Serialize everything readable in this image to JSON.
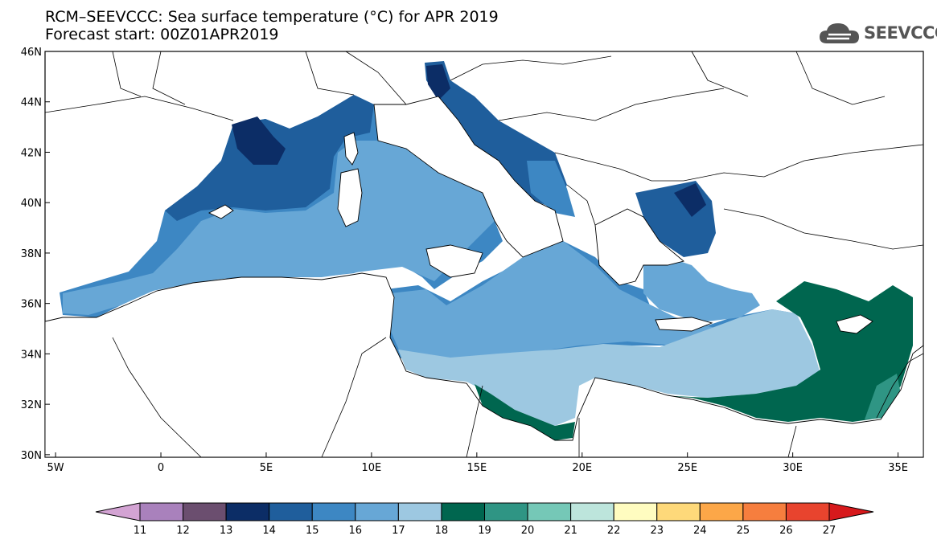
{
  "title": {
    "line1": "RCM–SEEVCCC: Sea surface temperature (°C) for APR 2019",
    "line2": "Forecast start: 00Z01APR2019"
  },
  "logo": {
    "text": "SEEVCCC",
    "icon": "cloud-icon"
  },
  "chart_data": {
    "type": "heatmap",
    "x_ticks": [
      "5W",
      "0",
      "5E",
      "10E",
      "15E",
      "20E",
      "25E",
      "30E",
      "35E"
    ],
    "y_ticks": [
      "46N",
      "44N",
      "42N",
      "40N",
      "38N",
      "36N",
      "34N",
      "32N",
      "30N"
    ],
    "xlim": [
      -5.5,
      36.2
    ],
    "ylim": [
      29.9,
      46
    ],
    "colorbar": {
      "labels": [
        "11",
        "12",
        "13",
        "14",
        "15",
        "16",
        "17",
        "18",
        "19",
        "20",
        "21",
        "22",
        "23",
        "24",
        "25",
        "26",
        "27"
      ],
      "colors": [
        "#d3a3d3",
        "#a981bc",
        "#6b4e6f",
        "#0c2d66",
        "#1f5e9c",
        "#3d87c3",
        "#67a7d6",
        "#9dc8e1",
        "#00664f",
        "#2f9584",
        "#75c8b7",
        "#bde5dc",
        "#fffcc0",
        "#fed97a",
        "#fca748",
        "#f67e3e",
        "#e8442e",
        "#d7191c"
      ]
    }
  }
}
